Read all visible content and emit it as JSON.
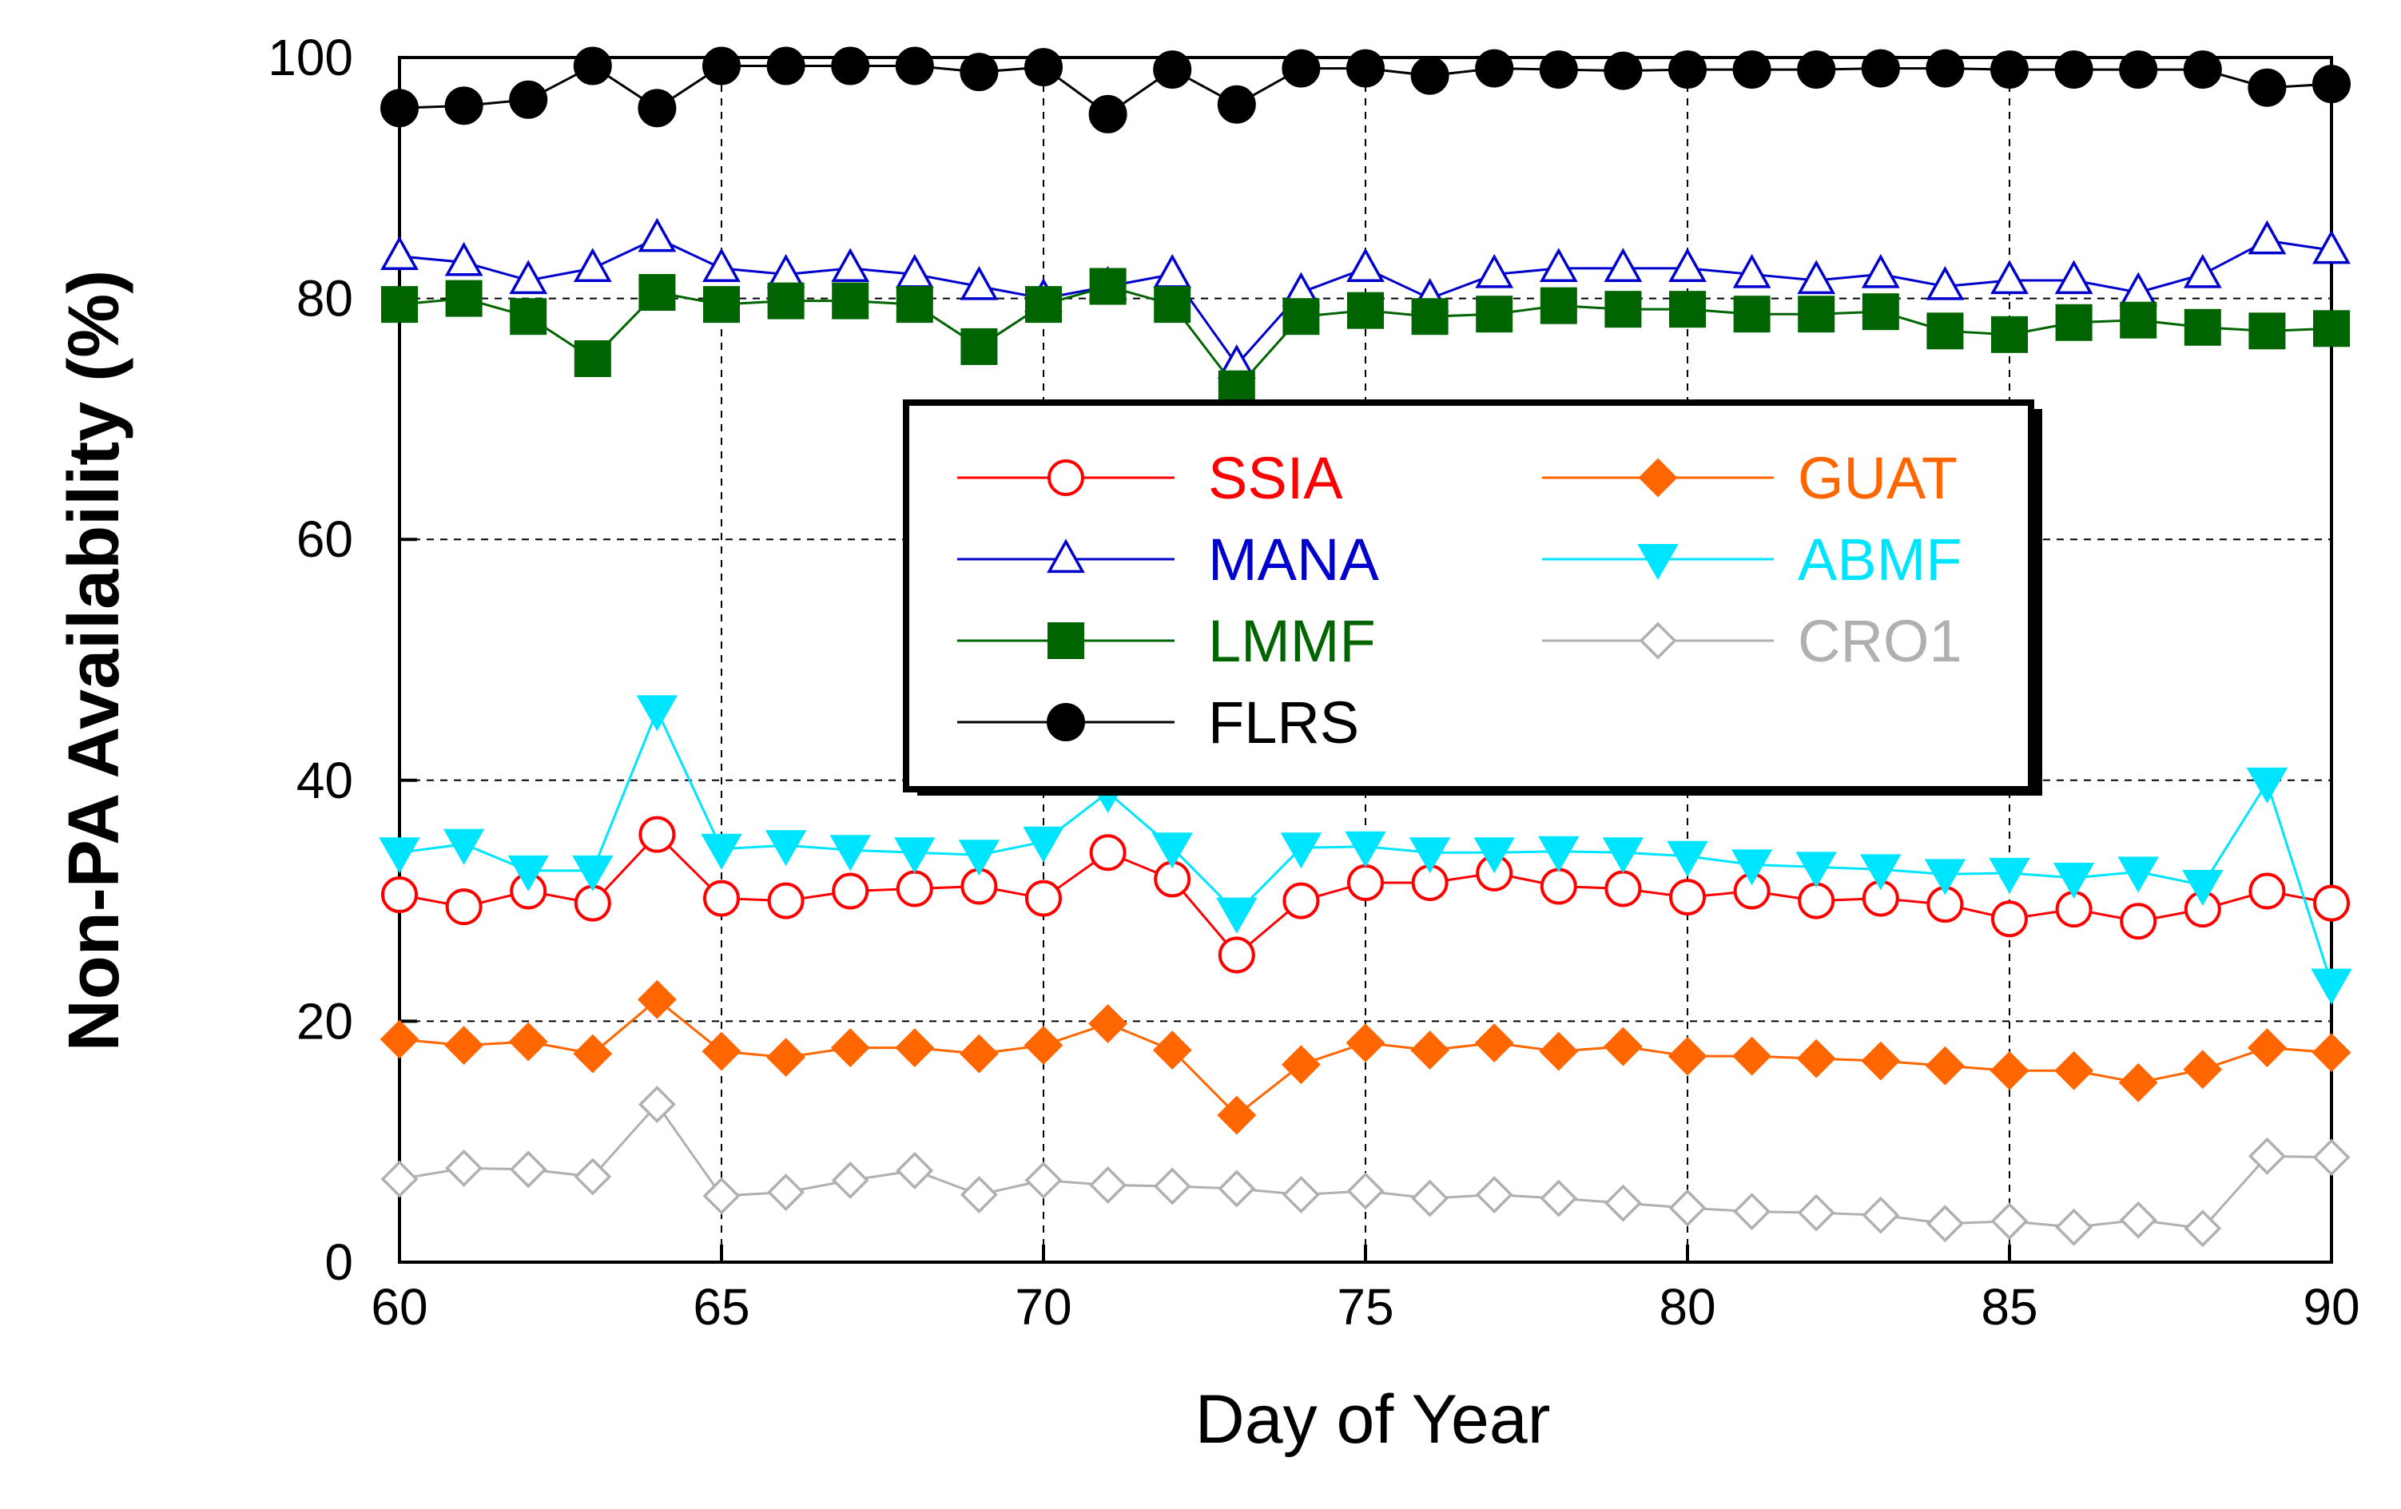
{
  "chart_data": {
    "type": "line",
    "xlabel": "Day of Year",
    "ylabel": "Non-PA Availability (%)",
    "xlim": [
      60,
      90
    ],
    "ylim": [
      0,
      100
    ],
    "xticks": [
      60,
      65,
      70,
      75,
      80,
      85,
      90
    ],
    "yticks": [
      0,
      20,
      40,
      60,
      80,
      100
    ],
    "grid": "dashed",
    "legend_position": "center",
    "x": [
      60,
      61,
      62,
      63,
      64,
      65,
      66,
      67,
      68,
      69,
      70,
      71,
      72,
      73,
      74,
      75,
      76,
      77,
      78,
      79,
      80,
      81,
      82,
      83,
      84,
      85,
      86,
      87,
      88,
      89,
      90
    ],
    "series": [
      {
        "name": "SSIA",
        "color": "#ff0000",
        "marker": "circle-open",
        "values": [
          30.5,
          29.5,
          30.8,
          29.8,
          35.5,
          30.2,
          30.0,
          30.8,
          31.0,
          31.2,
          30.2,
          34.0,
          31.8,
          25.5,
          30.0,
          31.5,
          31.5,
          32.3,
          31.2,
          31.0,
          30.3,
          30.8,
          30.0,
          30.2,
          29.7,
          28.5,
          29.3,
          28.3,
          29.3,
          30.8,
          29.8
        ]
      },
      {
        "name": "MANA",
        "color": "#0000cc",
        "marker": "triangle-up-open",
        "values": [
          83.5,
          83.0,
          81.5,
          82.5,
          85.0,
          82.5,
          82.0,
          82.5,
          82.0,
          81.0,
          80.0,
          81.0,
          82.0,
          74.5,
          80.5,
          82.5,
          80.0,
          82.0,
          82.5,
          82.5,
          82.5,
          82.0,
          81.5,
          82.0,
          81.0,
          81.5,
          81.5,
          80.5,
          82.0,
          84.8,
          84.0
        ]
      },
      {
        "name": "LMMF",
        "color": "#006400",
        "marker": "square-filled",
        "values": [
          79.5,
          80.0,
          78.5,
          75.0,
          80.5,
          79.5,
          79.8,
          79.8,
          79.5,
          76.0,
          79.5,
          81.0,
          79.5,
          72.5,
          78.5,
          79.0,
          78.5,
          78.7,
          79.4,
          79.1,
          79.1,
          78.7,
          78.7,
          78.9,
          77.3,
          77.0,
          78.0,
          78.2,
          77.6,
          77.3,
          77.5
        ]
      },
      {
        "name": "FLRS",
        "color": "#000000",
        "marker": "circle-filled",
        "values": [
          95.8,
          96.0,
          96.5,
          99.3,
          95.8,
          99.3,
          99.3,
          99.3,
          99.3,
          98.8,
          99.2,
          95.3,
          99.0,
          96.1,
          99.1,
          99.1,
          98.5,
          99.1,
          99.0,
          98.9,
          99.0,
          99.0,
          99.0,
          99.1,
          99.1,
          99.0,
          99.0,
          99.0,
          99.0,
          97.5,
          97.8
        ]
      },
      {
        "name": "GUAT",
        "color": "#ff6600",
        "marker": "diamond-filled",
        "values": [
          18.5,
          18.0,
          18.3,
          17.3,
          21.8,
          17.5,
          17.0,
          17.8,
          17.8,
          17.3,
          18.0,
          19.8,
          17.6,
          12.2,
          16.4,
          18.2,
          17.6,
          18.2,
          17.5,
          17.9,
          17.1,
          17.1,
          16.9,
          16.7,
          16.3,
          15.9,
          15.9,
          14.9,
          16.0,
          17.8,
          17.4
        ]
      },
      {
        "name": "ABMF",
        "color": "#00e5ff",
        "marker": "triangle-down-filled",
        "values": [
          34.0,
          34.7,
          32.5,
          32.5,
          45.8,
          34.3,
          34.6,
          34.2,
          34.0,
          33.8,
          34.9,
          39.0,
          34.4,
          29.0,
          34.4,
          34.5,
          34.0,
          34.0,
          34.1,
          34.0,
          33.7,
          33.0,
          32.8,
          32.6,
          32.2,
          32.3,
          31.9,
          32.4,
          31.3,
          39.8,
          23.1
        ]
      },
      {
        "name": "CRO1",
        "color": "#b0b0b0",
        "marker": "diamond-open",
        "values": [
          6.9,
          7.8,
          7.7,
          7.1,
          13.1,
          5.5,
          5.8,
          6.8,
          7.6,
          5.6,
          6.8,
          6.4,
          6.3,
          6.1,
          5.6,
          5.9,
          5.3,
          5.6,
          5.3,
          4.9,
          4.5,
          4.2,
          4.1,
          3.9,
          3.2,
          3.4,
          2.9,
          3.5,
          2.8,
          8.8,
          8.7
        ]
      }
    ]
  }
}
